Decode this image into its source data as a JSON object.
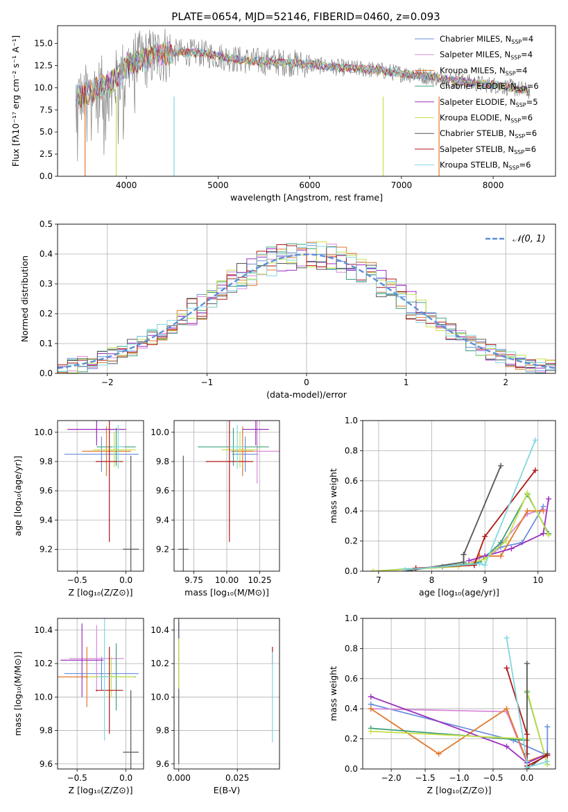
{
  "title": "PLATE=0654, MJD=52146, FIBERID=0460, z=0.093",
  "colors": {
    "chabrier_miles": "#6a8fdc",
    "salpeter_miles": "#d88ad8",
    "kroupa_miles": "#e0782a",
    "chabrier_elodie": "#39a079",
    "salpeter_elodie": "#9b2fbf",
    "kroupa_elodie": "#c8e04a",
    "chabrier_stelib": "#555555",
    "salpeter_stelib": "#b01515",
    "kroupa_stelib": "#7fd8e0",
    "normal_curve": "#5a8fd8"
  },
  "chart_data": [
    {
      "id": "spectrum",
      "type": "line",
      "title": "PLATE=0654, MJD=52146, FIBERID=0460, z=0.093",
      "xlabel": "wavelength [Angstrom, rest frame]",
      "ylabel": "Flux [fλ10⁻¹⁷ erg cm⁻² s⁻¹ A⁻¹]",
      "xlim": [
        3250,
        8680
      ],
      "ylim": [
        0,
        17
      ],
      "xticks": [
        4000,
        5000,
        6000,
        7000,
        8000
      ],
      "yticks": [
        0.0,
        2.5,
        5.0,
        7.5,
        10.0,
        12.5,
        15.0
      ],
      "legend_position": "right",
      "legend": [
        {
          "label": "Chabrier MILES, N_SSP=4",
          "color_key": "chabrier_miles"
        },
        {
          "label": "Salpeter MILES, N_SSP=4",
          "color_key": "salpeter_miles"
        },
        {
          "label": "Kroupa MILES, N_SSP=4",
          "color_key": "kroupa_miles"
        },
        {
          "label": "Chabrier ELODIE, N_SSP=6",
          "color_key": "chabrier_elodie"
        },
        {
          "label": "Salpeter ELODIE, N_SSP=5",
          "color_key": "salpeter_elodie"
        },
        {
          "label": "Kroupa ELODIE, N_SSP=6",
          "color_key": "kroupa_elodie"
        },
        {
          "label": "Chabrier STELIB, N_SSP=6",
          "color_key": "chabrier_stelib"
        },
        {
          "label": "Salpeter STELIB, N_SSP=6",
          "color_key": "salpeter_stelib"
        },
        {
          "label": "Kroupa STELIB, N_SSP=6",
          "color_key": "kroupa_stelib"
        }
      ],
      "continuum": {
        "x": [
          3500,
          3700,
          3900,
          4000,
          4200,
          4400,
          4600,
          4800,
          5000,
          5200,
          5400,
          5600,
          5800,
          6000,
          6200,
          6400,
          6600,
          6800,
          7000,
          7200,
          7400,
          7600,
          7800,
          8000,
          8200,
          8400
        ],
        "y": [
          9.0,
          10.0,
          11.0,
          12.5,
          13.2,
          13.8,
          14.0,
          13.9,
          13.6,
          13.2,
          13.0,
          12.9,
          12.8,
          12.6,
          12.4,
          12.2,
          12.1,
          11.9,
          11.6,
          11.4,
          11.1,
          10.8,
          10.5,
          10.3,
          10.0,
          9.6
        ]
      },
      "dips": [
        {
          "x": 3550,
          "y": 0.0,
          "series": "kroupa_miles"
        },
        {
          "x": 3890,
          "y": 0.0,
          "series": "kroupa_elodie"
        },
        {
          "x": 4520,
          "y": 0.0,
          "series": "kroupa_stelib"
        },
        {
          "x": 6800,
          "y": 0.0,
          "series": "kroupa_elodie"
        },
        {
          "x": 7410,
          "y": 0.0,
          "series": "kroupa_miles"
        }
      ]
    },
    {
      "id": "residuals",
      "type": "histogram",
      "xlabel": "(data-model)/error",
      "ylabel": "Normed distribution",
      "xlim": [
        -2.5,
        2.5
      ],
      "ylim": [
        0,
        0.5
      ],
      "xticks": [
        -2,
        -1,
        0,
        1,
        2
      ],
      "yticks": [
        0.0,
        0.1,
        0.2,
        0.3,
        0.4,
        0.5
      ],
      "legend_position": "top-right",
      "curve_label": "𝒩(0, 1)",
      "curve": {
        "type": "normal",
        "mu": 0,
        "sigma": 1
      }
    },
    {
      "id": "age_vs_Z",
      "type": "errorbar",
      "xlabel": "Z [log₁₀(Z/Z⊙)]",
      "ylabel": "age  [log₁₀(age/yr)]",
      "xlim": [
        -0.7,
        0.18
      ],
      "ylim": [
        9.05,
        10.08
      ],
      "xticks": [
        -0.5,
        0.0
      ],
      "xticklabels": [
        "−0.5",
        "0.0"
      ],
      "yticks": [
        9.2,
        9.4,
        9.6,
        9.8,
        10.0
      ],
      "points": [
        {
          "s": "chabrier_miles",
          "x": -0.25,
          "y": 9.85,
          "xerr": 0.38,
          "yerr": 0.12
        },
        {
          "s": "salpeter_miles",
          "x": -0.3,
          "y": 10.02,
          "xerr": 0.28,
          "yerr": 0.08
        },
        {
          "s": "kroupa_miles",
          "x": -0.2,
          "y": 9.87,
          "xerr": 0.25,
          "yerr": 0.17
        },
        {
          "s": "chabrier_elodie",
          "x": -0.1,
          "y": 9.9,
          "xerr": 0.2,
          "yerr": 0.13
        },
        {
          "s": "salpeter_elodie",
          "x": -0.3,
          "y": 10.02,
          "xerr": 0.3,
          "yerr": 0.11
        },
        {
          "s": "kroupa_elodie",
          "x": -0.12,
          "y": 9.88,
          "xerr": 0.22,
          "yerr": 0.12
        },
        {
          "s": "chabrier_stelib",
          "x": 0.05,
          "y": 9.2,
          "xerr": 0.08,
          "yerr": 0.64
        },
        {
          "s": "salpeter_stelib",
          "x": -0.17,
          "y": 9.8,
          "xerr": 0.14,
          "yerr": 0.55
        },
        {
          "s": "kroupa_stelib",
          "x": -0.08,
          "y": 9.9,
          "xerr": 0.06,
          "yerr": 0.15
        }
      ]
    },
    {
      "id": "age_vs_mass",
      "type": "errorbar",
      "xlabel": "mass [log₁₀(M/M⊙)]",
      "ylabel": "",
      "xlim": [
        9.6,
        10.4
      ],
      "ylim": [
        9.05,
        10.08
      ],
      "xticks": [
        9.75,
        10.0,
        10.25
      ],
      "xticklabels": [
        "9.75",
        "10.00",
        "10.25"
      ],
      "yticks": [
        9.2,
        9.4,
        9.6,
        9.8,
        10.0
      ],
      "points": [
        {
          "s": "chabrier_miles",
          "x": 10.14,
          "y": 9.85,
          "xerr": 0.1,
          "yerr": 0.12
        },
        {
          "s": "salpeter_miles",
          "x": 10.23,
          "y": 9.87,
          "xerr": 0.2,
          "yerr": 0.22
        },
        {
          "s": "kroupa_miles",
          "x": 10.12,
          "y": 9.87,
          "xerr": 0.08,
          "yerr": 0.17
        },
        {
          "s": "chabrier_elodie",
          "x": 10.05,
          "y": 9.9,
          "xerr": 0.27,
          "yerr": 0.13
        },
        {
          "s": "salpeter_elodie",
          "x": 10.22,
          "y": 10.02,
          "xerr": 0.1,
          "yerr": 0.11
        },
        {
          "s": "kroupa_elodie",
          "x": 10.1,
          "y": 9.88,
          "xerr": 0.14,
          "yerr": 0.12
        },
        {
          "s": "chabrier_stelib",
          "x": 9.67,
          "y": 9.2,
          "xerr": 0.04,
          "yerr": 0.64
        },
        {
          "s": "salpeter_stelib",
          "x": 10.02,
          "y": 9.8,
          "xerr": 0.18,
          "yerr": 0.55
        },
        {
          "s": "kroupa_stelib",
          "x": 10.08,
          "y": 9.9,
          "xerr": 0.06,
          "yerr": 0.15
        }
      ]
    },
    {
      "id": "weight_vs_age",
      "type": "line",
      "xlabel": "age  [log₁₀(age/yr)]",
      "ylabel": "mass weight",
      "xlim": [
        6.7,
        10.33
      ],
      "ylim": [
        0,
        1.0
      ],
      "xticks": [
        7,
        8,
        9,
        10
      ],
      "yticks": [
        0.0,
        0.2,
        0.4,
        0.6,
        0.8,
        1.0
      ],
      "series": [
        {
          "s": "chabrier_miles",
          "x": [
            8.8,
            9.3,
            9.7,
            10.1
          ],
          "y": [
            0.04,
            0.16,
            0.19,
            0.43
          ]
        },
        {
          "s": "salpeter_miles",
          "x": [
            8.7,
            9.2,
            9.8,
            10.1
          ],
          "y": [
            0.05,
            0.14,
            0.38,
            0.41
          ]
        },
        {
          "s": "kroupa_miles",
          "x": [
            8.9,
            9.3,
            9.8,
            10.1
          ],
          "y": [
            0.1,
            0.1,
            0.4,
            0.4
          ]
        },
        {
          "s": "chabrier_elodie",
          "x": [
            6.9,
            8.2,
            8.9,
            9.3,
            9.8,
            10.2
          ],
          "y": [
            0.0,
            0.03,
            0.06,
            0.19,
            0.51,
            0.25
          ]
        },
        {
          "s": "salpeter_elodie",
          "x": [
            8.7,
            9.0,
            9.5,
            10.1,
            10.2
          ],
          "y": [
            0.07,
            0.1,
            0.15,
            0.25,
            0.48
          ]
        },
        {
          "s": "kroupa_elodie",
          "x": [
            6.9,
            8.5,
            9.0,
            9.4,
            9.8,
            10.2
          ],
          "y": [
            0.0,
            0.03,
            0.08,
            0.2,
            0.52,
            0.24
          ]
        },
        {
          "s": "chabrier_stelib",
          "x": [
            7.5,
            8.6,
            8.6,
            9.3
          ],
          "y": [
            0.0,
            0.06,
            0.11,
            0.7
          ]
        },
        {
          "s": "salpeter_stelib",
          "x": [
            7.7,
            8.8,
            9.0,
            9.95
          ],
          "y": [
            0.02,
            0.04,
            0.23,
            0.67
          ]
        },
        {
          "s": "kroupa_stelib",
          "x": [
            7.5,
            8.9,
            9.0,
            9.95
          ],
          "y": [
            0.01,
            0.05,
            0.04,
            0.87
          ]
        }
      ]
    },
    {
      "id": "mass_vs_Z",
      "type": "errorbar",
      "xlabel": "Z [log₁₀(Z/Z⊙)]",
      "ylabel": "mass [log₁₀(M/M⊙)]",
      "xlim": [
        -0.7,
        0.18
      ],
      "ylim": [
        9.57,
        10.47
      ],
      "xticks": [
        -0.5,
        0.0
      ],
      "xticklabels": [
        "−0.5",
        "0.0"
      ],
      "yticks": [
        9.6,
        9.8,
        10.0,
        10.2,
        10.4
      ],
      "points": [
        {
          "s": "chabrier_miles",
          "x": -0.25,
          "y": 10.14,
          "xerr": 0.38,
          "yerr": 0.1
        },
        {
          "s": "salpeter_miles",
          "x": -0.3,
          "y": 10.23,
          "xerr": 0.28,
          "yerr": 0.2
        },
        {
          "s": "kroupa_miles",
          "x": -0.4,
          "y": 10.12,
          "xerr": 0.3,
          "yerr": 0.18
        },
        {
          "s": "chabrier_elodie",
          "x": -0.1,
          "y": 10.12,
          "xerr": 0.2,
          "yerr": 0.2
        },
        {
          "s": "salpeter_elodie",
          "x": -0.45,
          "y": 10.22,
          "xerr": 0.22,
          "yerr": 0.22
        },
        {
          "s": "kroupa_elodie",
          "x": -0.15,
          "y": 10.12,
          "xerr": 0.24,
          "yerr": 0.12
        },
        {
          "s": "chabrier_stelib",
          "x": 0.05,
          "y": 9.67,
          "xerr": 0.08,
          "yerr": 0.37
        },
        {
          "s": "salpeter_stelib",
          "x": -0.17,
          "y": 10.04,
          "xerr": 0.14,
          "yerr": 0.26
        },
        {
          "s": "kroupa_stelib",
          "x": -0.22,
          "y": 10.12,
          "xerr": 0.06,
          "yerr": 0.38
        }
      ]
    },
    {
      "id": "mass_vs_ebv",
      "type": "errorbar",
      "xlabel": "E(B-V)",
      "ylabel": "",
      "xlim": [
        -0.002,
        0.043
      ],
      "ylim": [
        9.57,
        10.47
      ],
      "xticks": [
        0.0,
        0.025
      ],
      "xticklabels": [
        "0.000",
        "0.025"
      ],
      "yticks": [
        9.6,
        9.8,
        10.0,
        10.2,
        10.4
      ],
      "points": [
        {
          "s": "salpeter_elodie",
          "x": 0.0,
          "y": 10.4,
          "xerr": 0.0,
          "yerr": 0.05
        },
        {
          "s": "chabrier_stelib",
          "x": 0.0,
          "y": 10.05,
          "xerr": 0.0,
          "yerr": 0.45
        },
        {
          "s": "kroupa_elodie",
          "x": 0.0,
          "y": 10.2,
          "xerr": 0.0,
          "yerr": 0.15
        },
        {
          "s": "salpeter_stelib",
          "x": 0.04,
          "y": 10.25,
          "xerr": 0.0,
          "yerr": 0.05
        },
        {
          "s": "kroupa_stelib",
          "x": 0.04,
          "y": 10.0,
          "xerr": 0.0,
          "yerr": 0.27
        }
      ]
    },
    {
      "id": "weight_vs_Z",
      "type": "line",
      "xlabel": "Z [log₁₀(Z/Z⊙)]",
      "ylabel": "mass weight",
      "xlim": [
        -2.42,
        0.42
      ],
      "ylim": [
        0,
        1.0
      ],
      "xticks": [
        -2.0,
        -1.5,
        -1.0,
        -0.5,
        0.0
      ],
      "xticklabels": [
        "−2.0",
        "−1.5",
        "−1.0",
        "−0.5",
        "0.0"
      ],
      "yticks": [
        0.0,
        0.2,
        0.4,
        0.6,
        0.8,
        1.0
      ],
      "series": [
        {
          "s": "chabrier_miles",
          "x": [
            -2.3,
            -0.2,
            0.3,
            0.3
          ],
          "y": [
            0.43,
            0.19,
            0.09,
            0.28
          ]
        },
        {
          "s": "salpeter_miles",
          "x": [
            -2.3,
            -0.3,
            0.0,
            0.3
          ],
          "y": [
            0.4,
            0.38,
            0.04,
            0.1
          ]
        },
        {
          "s": "kroupa_miles",
          "x": [
            -2.3,
            -1.3,
            -0.3,
            0.0,
            0.3
          ],
          "y": [
            0.4,
            0.1,
            0.4,
            0.05,
            0.1
          ]
        },
        {
          "s": "chabrier_elodie",
          "x": [
            -2.3,
            0.0,
            0.0,
            0.3
          ],
          "y": [
            0.27,
            0.19,
            0.51,
            0.03
          ]
        },
        {
          "s": "salpeter_elodie",
          "x": [
            -2.3,
            -0.3,
            0.0,
            0.3
          ],
          "y": [
            0.48,
            0.15,
            0.04,
            0.1
          ]
        },
        {
          "s": "kroupa_elodie",
          "x": [
            -2.3,
            0.0,
            0.0,
            0.3
          ],
          "y": [
            0.25,
            0.2,
            0.52,
            0.03
          ]
        },
        {
          "s": "chabrier_stelib",
          "x": [
            0.0,
            0.0,
            0.0,
            0.3
          ],
          "y": [
            0.7,
            0.1,
            0.0,
            0.1
          ]
        },
        {
          "s": "salpeter_stelib",
          "x": [
            -0.3,
            0.0,
            0.0,
            0.3
          ],
          "y": [
            0.67,
            0.23,
            0.02,
            0.09
          ]
        },
        {
          "s": "kroupa_stelib",
          "x": [
            -0.3,
            0.0,
            0.0,
            0.3
          ],
          "y": [
            0.87,
            0.05,
            0.01,
            0.05
          ]
        }
      ]
    }
  ]
}
